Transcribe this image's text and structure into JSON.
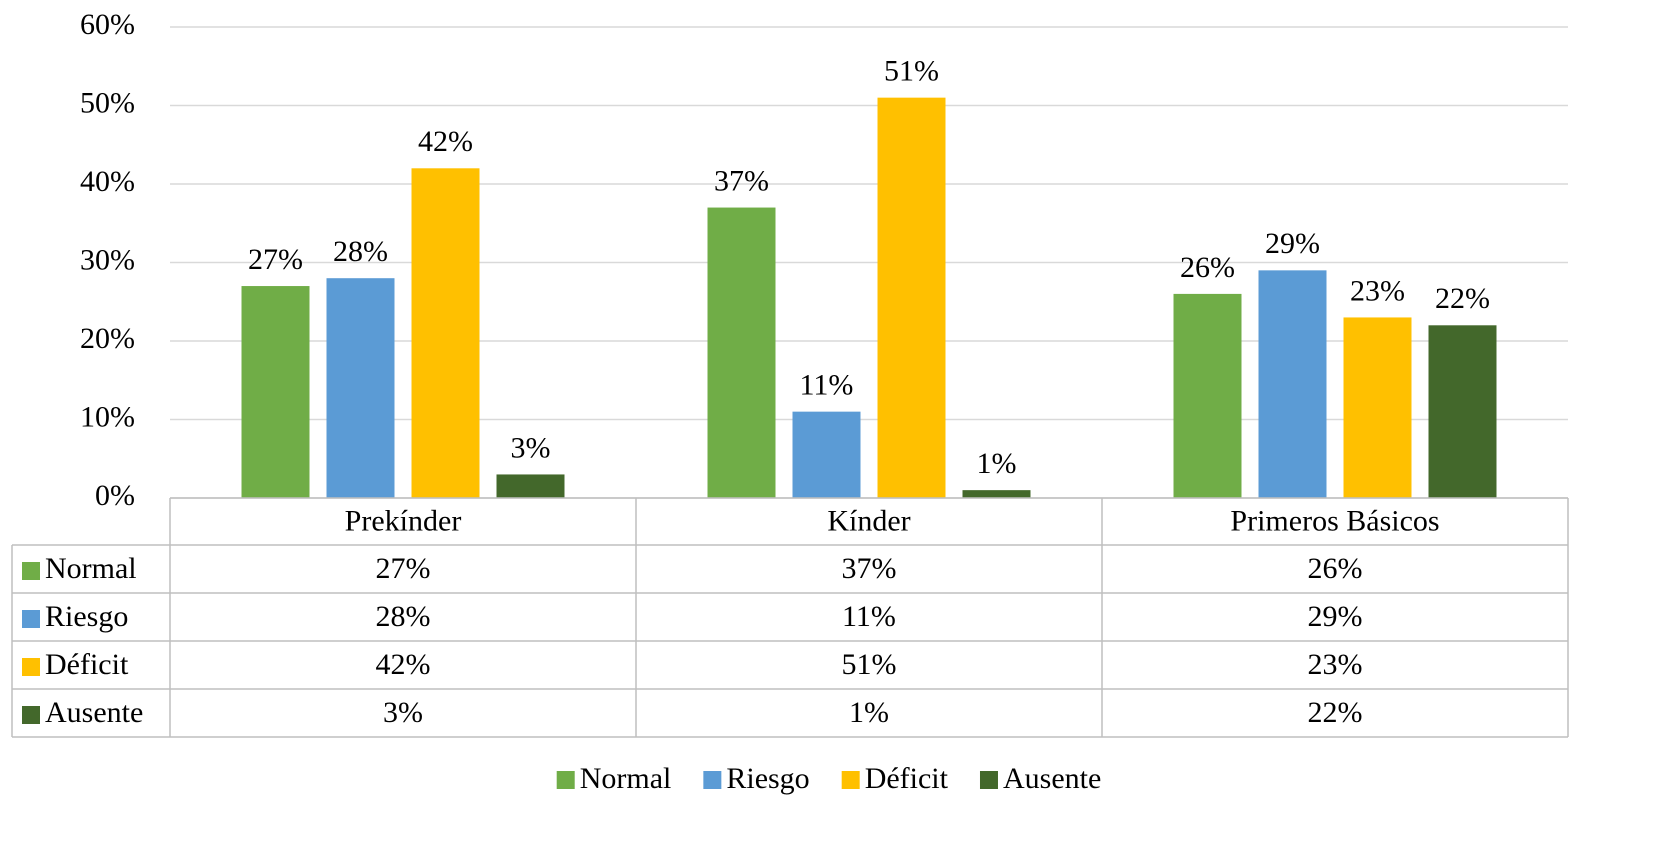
{
  "chart_data": {
    "type": "bar",
    "categories": [
      "Prekínder",
      "Kínder",
      "Primeros Básicos"
    ],
    "series": [
      {
        "name": "Normal",
        "color": "#70ad47",
        "values": [
          27,
          37,
          26
        ],
        "value_labels": [
          "27%",
          "37%",
          "26%"
        ]
      },
      {
        "name": "Riesgo",
        "color": "#5b9bd5",
        "values": [
          28,
          11,
          29
        ],
        "value_labels": [
          "28%",
          "11%",
          "29%"
        ]
      },
      {
        "name": "Déficit",
        "color": "#ffc000",
        "values": [
          42,
          51,
          23
        ],
        "value_labels": [
          "42%",
          "51%",
          "23%"
        ]
      },
      {
        "name": "Ausente",
        "color": "#43682b",
        "values": [
          3,
          1,
          22
        ],
        "value_labels": [
          "3%",
          "1%",
          "22%"
        ]
      }
    ],
    "ylim": [
      0,
      60
    ],
    "yticks": [
      {
        "value": 0,
        "label": "0%"
      },
      {
        "value": 10,
        "label": "10%"
      },
      {
        "value": 20,
        "label": "20%"
      },
      {
        "value": 30,
        "label": "30%"
      },
      {
        "value": 40,
        "label": "40%"
      },
      {
        "value": 50,
        "label": "50%"
      },
      {
        "value": 60,
        "label": "60%"
      }
    ],
    "grid": true,
    "data_table": true,
    "legend": "bottom"
  }
}
